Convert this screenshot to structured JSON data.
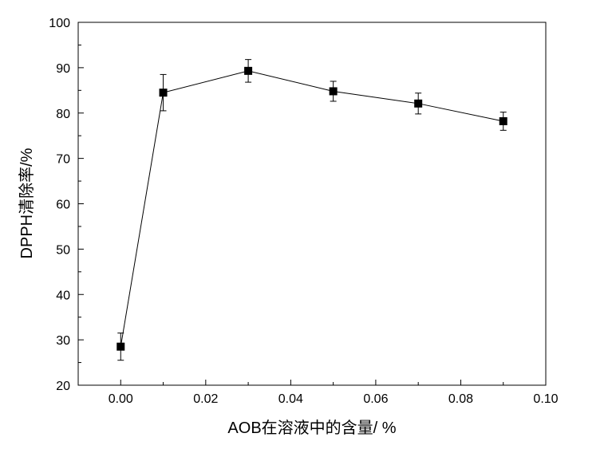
{
  "chart_data": {
    "type": "scatter",
    "title": "",
    "xlabel": "AOB在溶液中的含量/ %",
    "ylabel": "DPPH清除率/%",
    "xlim": [
      -0.01,
      0.1
    ],
    "ylim": [
      20,
      100
    ],
    "x_ticks": [
      "0.00",
      "0.02",
      "0.04",
      "0.06",
      "0.08",
      "0.10"
    ],
    "y_ticks": [
      "20",
      "30",
      "40",
      "50",
      "60",
      "70",
      "80",
      "90",
      "100"
    ],
    "grid": false,
    "legend": "none",
    "marker": "square",
    "connected": true,
    "color": "#000000",
    "series": [
      {
        "x": [
          0.0,
          0.01,
          0.03,
          0.05,
          0.07,
          0.09
        ],
        "y": [
          28.5,
          84.5,
          89.3,
          84.8,
          82.1,
          78.2
        ],
        "error": [
          3.0,
          4.0,
          2.5,
          2.2,
          2.3,
          2.0
        ]
      }
    ]
  }
}
